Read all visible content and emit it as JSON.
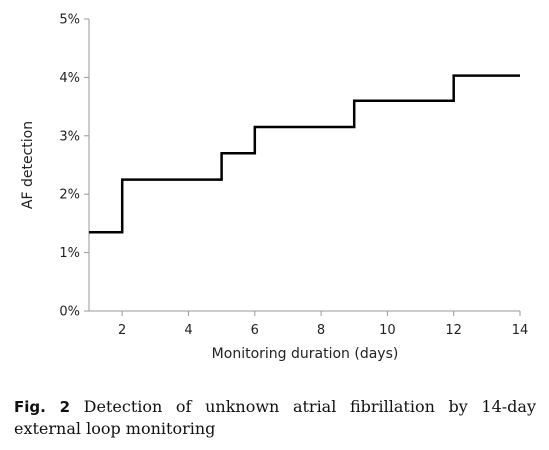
{
  "chart_data": {
    "type": "line",
    "step": true,
    "ylabel": "AF detection",
    "xlabel": "Monitoring duration (days)",
    "xlim": [
      1,
      14
    ],
    "ylim": [
      0,
      5
    ],
    "xticks": [
      2,
      4,
      6,
      8,
      10,
      12,
      14
    ],
    "xtick_labels": [
      "2",
      "4",
      "6",
      "8",
      "10",
      "12",
      "14"
    ],
    "yticks": [
      0,
      1,
      2,
      3,
      4,
      5
    ],
    "ytick_labels": [
      "0%",
      "1%",
      "2%",
      "3%",
      "4%",
      "5%"
    ],
    "grid": false,
    "series": [
      {
        "x": [
          1,
          2,
          2,
          5,
          5,
          6,
          6,
          9,
          9,
          12,
          12,
          14
        ],
        "y": [
          1.35,
          1.35,
          2.25,
          2.25,
          2.7,
          2.7,
          3.15,
          3.15,
          3.6,
          3.6,
          4.03,
          4.03
        ]
      }
    ]
  },
  "caption": {
    "label": "Fig. 2",
    "text": "Detection of unknown atrial fibrillation by 14-day external loop monitoring"
  }
}
